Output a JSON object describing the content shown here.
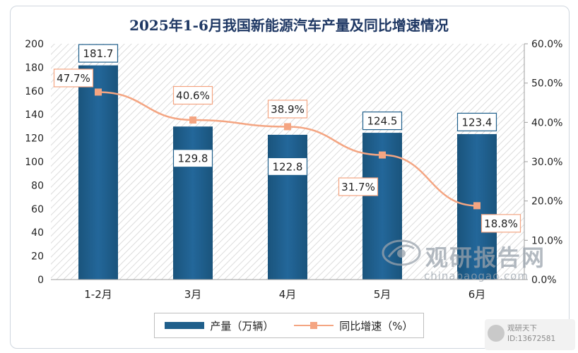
{
  "chart_data": {
    "type": "bar",
    "title": "2025年1-6月我国新能源汽车产量及同比增速情况",
    "categories": [
      "1-2月",
      "3月",
      "4月",
      "5月",
      "6月"
    ],
    "series": [
      {
        "name": "产量（万辆）",
        "type": "bar",
        "axis": "left",
        "values": [
          181.7,
          129.8,
          122.8,
          124.5,
          123.4
        ],
        "labels": [
          "181.7",
          "129.8",
          "122.8",
          "124.5",
          "123.4"
        ],
        "color": "#1f5f8b"
      },
      {
        "name": "同比增速（%）",
        "type": "line",
        "axis": "right",
        "values": [
          47.7,
          40.6,
          38.9,
          31.7,
          18.8
        ],
        "labels": [
          "47.7%",
          "40.6%",
          "38.9%",
          "31.7%",
          "18.8%"
        ],
        "color": "#f4a582"
      }
    ],
    "y_left": {
      "min": 0,
      "max": 200,
      "ticks": [
        "0",
        "20",
        "40",
        "60",
        "80",
        "100",
        "120",
        "140",
        "160",
        "180",
        "200"
      ]
    },
    "y_right": {
      "min": 0,
      "max": 60,
      "ticks": [
        "0.0%",
        "10.0%",
        "20.0%",
        "30.0%",
        "40.0%",
        "50.0%",
        "60.0%"
      ]
    },
    "legend": "bottom-center",
    "grid": false
  },
  "watermark": {
    "name": "观研报告网",
    "url": "chinabaogao.com"
  },
  "source": {
    "name": "观研天下",
    "id": "ID:13672581"
  }
}
